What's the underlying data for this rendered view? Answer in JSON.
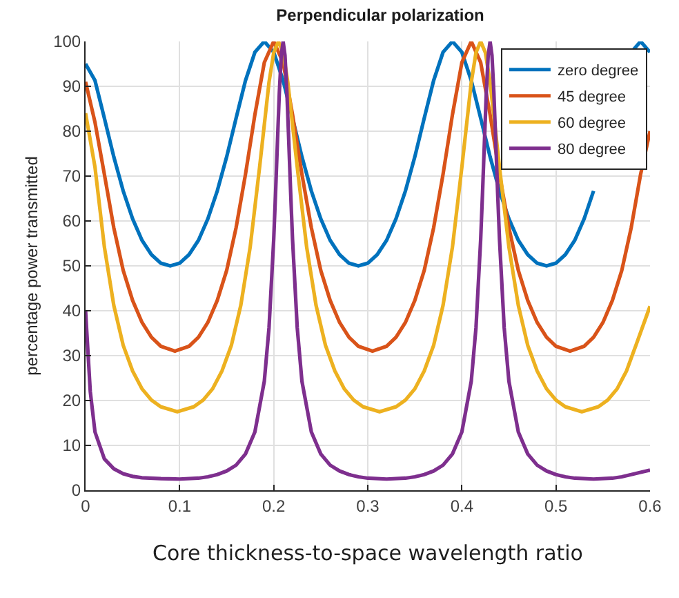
{
  "chart_data": {
    "type": "line",
    "title": "Perpendicular polarization",
    "xlabel": "Core thickness-to-space wavelength ratio",
    "ylabel": "percentage power transmitted",
    "xlim": [
      0,
      0.6
    ],
    "xticks": [
      0,
      0.1,
      0.2,
      0.3,
      0.4,
      0.5,
      0.6
    ],
    "ylim": [
      0,
      100
    ],
    "yticks": [
      0,
      10,
      20,
      30,
      40,
      50,
      60,
      70,
      80,
      90,
      100
    ],
    "grid": true,
    "legend": "top right",
    "marker": "none",
    "line_style": "solid",
    "series": [
      {
        "name": "zero degree",
        "color": "#0072bd",
        "x": [
          0,
          0.01,
          0.02,
          0.03,
          0.04,
          0.05,
          0.06,
          0.07,
          0.08,
          0.09,
          0.1,
          0.11,
          0.12,
          0.13,
          0.14,
          0.15,
          0.16,
          0.17,
          0.18,
          0.19,
          0.2,
          0.21,
          0.22,
          0.23,
          0.24,
          0.25,
          0.26,
          0.27,
          0.28,
          0.29,
          0.3,
          0.31,
          0.32,
          0.33,
          0.34,
          0.35,
          0.36,
          0.37,
          0.38,
          0.39,
          0.4,
          0.41,
          0.42,
          0.43,
          0.44,
          0.45,
          0.46,
          0.47,
          0.48,
          0.49,
          0.5,
          0.51,
          0.52,
          0.53,
          0.54,
          0.55,
          0.56,
          0.57,
          0.58,
          0.59,
          0.6
        ],
        "values": [
          95,
          91.3,
          82.9,
          74.3,
          66.7,
          60.5,
          55.7,
          52.5,
          50.6,
          50,
          50.6,
          52.5,
          55.7,
          60.5,
          66.7,
          74.3,
          82.9,
          91.3,
          97.6,
          100,
          97.6,
          91.3,
          82.9,
          74.3,
          66.7,
          60.5,
          55.7,
          52.5,
          50.6,
          50,
          50.6,
          52.5,
          55.7,
          60.5,
          66.7,
          74.3,
          82.9,
          91.3,
          97.6,
          100,
          97.6,
          91.3,
          82.9,
          74.3,
          66.7,
          60.5,
          55.7,
          52.5,
          50.6,
          50,
          50.6,
          52.5,
          55.7,
          60.5,
          66.7,
          null,
          null,
          null,
          97.6,
          100,
          97.6
        ]
      },
      {
        "name": "45 degree",
        "color": "#d95319",
        "x": [
          0,
          0.01,
          0.02,
          0.03,
          0.04,
          0.05,
          0.06,
          0.07,
          0.08,
          0.095,
          0.11,
          0.12,
          0.13,
          0.14,
          0.15,
          0.16,
          0.17,
          0.18,
          0.19,
          0.2,
          0.21,
          0.22,
          0.23,
          0.24,
          0.25,
          0.26,
          0.27,
          0.28,
          0.29,
          0.305,
          0.32,
          0.33,
          0.34,
          0.35,
          0.36,
          0.37,
          0.38,
          0.39,
          0.4,
          0.41,
          0.42,
          0.43,
          0.44,
          0.45,
          0.46,
          0.47,
          0.48,
          0.49,
          0.5,
          0.515,
          0.53,
          0.54,
          0.55,
          0.56,
          0.57,
          0.58,
          0.59,
          0.6
        ],
        "values": [
          91,
          82,
          70.4,
          58.5,
          49,
          42.3,
          37.4,
          34.1,
          32.1,
          31,
          32.1,
          34.1,
          37.4,
          42.3,
          49,
          58.5,
          70.4,
          83.7,
          95.3,
          100,
          95.3,
          83.7,
          70.4,
          58.5,
          49,
          42.3,
          37.4,
          34.1,
          32.1,
          31,
          32.1,
          34.1,
          37.4,
          42.3,
          49,
          58.5,
          70.4,
          83.7,
          95.3,
          100,
          95.3,
          83.7,
          70.4,
          58.5,
          49,
          42.3,
          37.4,
          34.1,
          32.1,
          31,
          32.1,
          34.1,
          37.4,
          42.3,
          49,
          58.5,
          70.4,
          80
        ]
      },
      {
        "name": "60 degree",
        "color": "#edb120",
        "x": [
          0,
          0.01,
          0.02,
          0.03,
          0.04,
          0.05,
          0.06,
          0.07,
          0.08,
          0.0975,
          0.115,
          0.125,
          0.135,
          0.145,
          0.155,
          0.165,
          0.175,
          0.185,
          0.195,
          0.2,
          0.205,
          0.21,
          0.215,
          0.225,
          0.235,
          0.245,
          0.255,
          0.265,
          0.275,
          0.285,
          0.295,
          0.3125,
          0.33,
          0.34,
          0.35,
          0.36,
          0.37,
          0.38,
          0.39,
          0.4,
          0.41,
          0.415,
          0.42,
          0.425,
          0.43,
          0.44,
          0.45,
          0.46,
          0.47,
          0.48,
          0.49,
          0.5,
          0.51,
          0.5275,
          0.545,
          0.555,
          0.565,
          0.575,
          0.585,
          0.6
        ],
        "values": [
          84,
          72,
          54.2,
          41.2,
          32.3,
          26.6,
          22.6,
          20.1,
          18.6,
          17.5,
          18.6,
          20.1,
          22.6,
          26.6,
          32.3,
          41.2,
          54.2,
          72,
          90.9,
          97.5,
          100,
          97.5,
          90.9,
          72,
          54.2,
          41.2,
          32.3,
          26.6,
          22.6,
          20.1,
          18.6,
          17.5,
          18.6,
          20.1,
          22.6,
          26.6,
          32.3,
          41.2,
          54.2,
          72,
          90.9,
          97.5,
          100,
          97.5,
          90.9,
          72,
          54.2,
          41.2,
          32.3,
          26.6,
          22.6,
          20.1,
          18.6,
          17.5,
          18.6,
          20.1,
          22.6,
          26.6,
          32.3,
          41
        ]
      },
      {
        "name": "80 degree",
        "color": "#7e2f8e",
        "x": [
          0,
          0.005,
          0.01,
          0.02,
          0.03,
          0.04,
          0.05,
          0.06,
          0.08,
          0.1,
          0.12,
          0.13,
          0.14,
          0.15,
          0.16,
          0.17,
          0.18,
          0.19,
          0.195,
          0.2,
          0.202,
          0.204,
          0.206,
          0.208,
          0.21,
          0.212,
          0.214,
          0.216,
          0.218,
          0.22,
          0.225,
          0.23,
          0.24,
          0.25,
          0.26,
          0.27,
          0.28,
          0.29,
          0.3,
          0.32,
          0.34,
          0.35,
          0.36,
          0.37,
          0.38,
          0.39,
          0.4,
          0.41,
          0.415,
          0.42,
          0.422,
          0.424,
          0.426,
          0.428,
          0.43,
          0.432,
          0.434,
          0.436,
          0.438,
          0.44,
          0.445,
          0.45,
          0.46,
          0.47,
          0.48,
          0.49,
          0.5,
          0.51,
          0.52,
          0.54,
          0.56,
          0.57,
          0.58,
          0.59,
          0.6
        ],
        "values": [
          40,
          22,
          13,
          7,
          4.8,
          3.7,
          3.1,
          2.8,
          2.6,
          2.5,
          2.7,
          3,
          3.5,
          4.3,
          5.6,
          8.1,
          13,
          24.3,
          36.2,
          55.9,
          66.4,
          77.8,
          88.7,
          96.9,
          100,
          96.9,
          88.7,
          77.8,
          66.4,
          55.9,
          36.2,
          24.3,
          13,
          8.1,
          5.6,
          4.3,
          3.5,
          3,
          2.7,
          2.5,
          2.7,
          3,
          3.5,
          4.3,
          5.6,
          8.1,
          13,
          24.3,
          36.2,
          55.9,
          66.4,
          77.8,
          88.7,
          96.9,
          100,
          96.9,
          88.7,
          77.8,
          66.4,
          55.9,
          36.2,
          24.3,
          13,
          8.1,
          5.6,
          4.3,
          3.5,
          3,
          2.7,
          2.5,
          2.7,
          3,
          3.5,
          4,
          4.5
        ]
      }
    ]
  }
}
